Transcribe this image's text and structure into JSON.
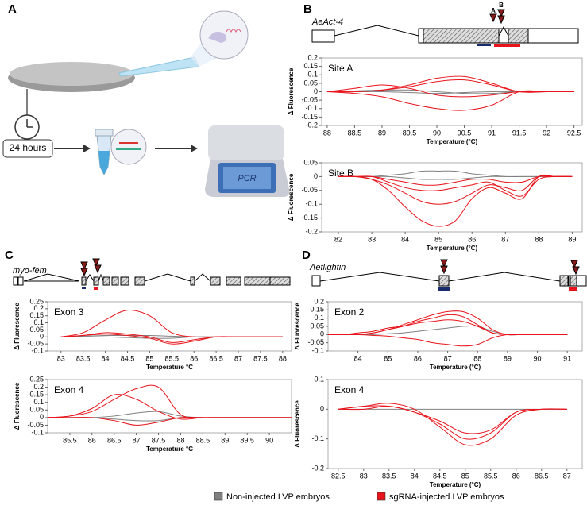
{
  "panels": {
    "a": "A",
    "b": "B",
    "c": "C",
    "d": "D"
  },
  "illustration": {
    "time": "24 hours",
    "machine": "PCR"
  },
  "genes": {
    "b": {
      "name": "AeAct-4",
      "site_a": "A",
      "site_b": "B"
    },
    "c": {
      "name": "myo-fem"
    },
    "d": {
      "name": "Aeflightin"
    }
  },
  "legend": {
    "items": [
      {
        "label": "Non-injected LVP embryos",
        "color": "#808080"
      },
      {
        "label": "sgRNA-injected LVP embryos",
        "color": "#e8141b"
      }
    ]
  },
  "chart_data": [
    {
      "type": "line",
      "label": "Site A",
      "ylabel": "Δ Fluorescence",
      "xlabel": "Temperature (°C)",
      "xlim": [
        87.9,
        92.65
      ],
      "xticks": [
        88,
        88.5,
        89,
        89.5,
        90,
        90.5,
        91,
        91.5,
        92,
        92.5
      ],
      "ylim": [
        -0.2,
        0.2
      ],
      "yticks": [
        -0.2,
        -0.15,
        -0.1,
        -0.05,
        0,
        0.05,
        0.1,
        0.15,
        0.2
      ],
      "x": [
        88,
        88.5,
        89,
        89.5,
        90,
        90.5,
        91,
        91.5,
        92,
        92.5
      ],
      "series": [
        {
          "color": "#808080",
          "values": [
            0,
            0.005,
            0.01,
            0.01,
            0,
            -0.01,
            -0.01,
            0,
            0,
            0
          ]
        },
        {
          "color": "#808080",
          "values": [
            0,
            0,
            0,
            -0.005,
            -0.01,
            -0.005,
            0,
            0,
            0,
            0
          ]
        },
        {
          "color": "#e8141b",
          "values": [
            0,
            0.02,
            0.04,
            0.02,
            -0.02,
            -0.03,
            -0.02,
            0,
            0,
            0
          ]
        },
        {
          "color": "#e8141b",
          "values": [
            0,
            0,
            0.01,
            0.04,
            0.08,
            0.09,
            0.05,
            0,
            0,
            0
          ]
        },
        {
          "color": "#e8141b",
          "values": [
            0,
            0,
            0.01,
            0.03,
            0.06,
            0.07,
            0.04,
            0,
            0,
            0
          ]
        },
        {
          "color": "#e8141b",
          "values": [
            0,
            -0.01,
            -0.03,
            -0.07,
            -0.1,
            -0.11,
            -0.08,
            0,
            0,
            0
          ]
        }
      ]
    },
    {
      "type": "line",
      "label": "Site B",
      "ylabel": "Δ Fluorescence",
      "xlabel": "Temperature (°C)",
      "xlim": [
        81.5,
        89.3
      ],
      "xticks": [
        82,
        83,
        84,
        85,
        86,
        87,
        88,
        89
      ],
      "ylim": [
        -0.2,
        0.05
      ],
      "yticks": [
        -0.2,
        -0.15,
        -0.1,
        -0.05,
        0,
        0.05
      ],
      "x": [
        82,
        82.5,
        83,
        83.5,
        84,
        84.5,
        85,
        85.5,
        86,
        86.5,
        87,
        87.5,
        88,
        88.5,
        89
      ],
      "series": [
        {
          "color": "#808080",
          "values": [
            0,
            0,
            0,
            0.005,
            0.01,
            0.02,
            0.02,
            0.02,
            0.01,
            0.005,
            0,
            0,
            0,
            0,
            0
          ]
        },
        {
          "color": "#808080",
          "values": [
            0,
            0,
            0,
            0,
            -0.005,
            -0.01,
            -0.01,
            -0.01,
            -0.005,
            0,
            0,
            0,
            0,
            0,
            0
          ]
        },
        {
          "color": "#e8141b",
          "values": [
            0,
            0,
            -0.01,
            -0.05,
            -0.11,
            -0.16,
            -0.18,
            -0.16,
            -0.08,
            -0.04,
            -0.06,
            -0.08,
            0,
            0,
            0
          ]
        },
        {
          "color": "#e8141b",
          "values": [
            0,
            0,
            -0.01,
            -0.03,
            -0.06,
            -0.09,
            -0.1,
            -0.09,
            -0.06,
            -0.03,
            -0.04,
            -0.05,
            0,
            0,
            0
          ]
        },
        {
          "color": "#e8141b",
          "values": [
            0,
            0,
            0,
            -0.02,
            -0.04,
            -0.05,
            -0.05,
            -0.04,
            -0.03,
            -0.02,
            -0.05,
            -0.07,
            -0.01,
            0,
            0
          ]
        },
        {
          "color": "#e8141b",
          "values": [
            0,
            0,
            0,
            -0.01,
            -0.02,
            -0.03,
            -0.03,
            -0.02,
            -0.01,
            -0.01,
            -0.02,
            -0.02,
            0,
            0,
            0
          ]
        }
      ]
    },
    {
      "type": "line",
      "label": "Exon 3",
      "ylabel": "Δ Fluorescence",
      "xlabel": "Temperature °C",
      "xlim": [
        82.7,
        88.2
      ],
      "xticks": [
        83,
        83.5,
        84,
        84.5,
        85,
        85.5,
        86,
        86.5,
        87,
        87.5,
        88
      ],
      "ylim": [
        -0.1,
        0.25
      ],
      "yticks": [
        -0.1,
        -0.05,
        0,
        0.05,
        0.1,
        0.15,
        0.2,
        0.25
      ],
      "x": [
        83,
        83.5,
        84,
        84.5,
        85,
        85.5,
        86,
        86.5,
        87,
        87.5,
        88
      ],
      "series": [
        {
          "color": "#808080",
          "values": [
            0,
            0.005,
            0.01,
            0.01,
            0.01,
            0.005,
            0,
            0,
            0,
            0,
            0
          ]
        },
        {
          "color": "#808080",
          "values": [
            0,
            0,
            0,
            -0.005,
            -0.01,
            -0.01,
            0,
            0,
            0,
            0,
            0
          ]
        },
        {
          "color": "#e8141b",
          "values": [
            0,
            0.03,
            0.12,
            0.19,
            0.15,
            0.03,
            0,
            0,
            0,
            0,
            0
          ]
        },
        {
          "color": "#e8141b",
          "values": [
            0,
            0.01,
            0.03,
            0.02,
            0,
            -0.04,
            -0.02,
            0,
            0,
            0,
            0
          ]
        },
        {
          "color": "#e8141b",
          "values": [
            0,
            0.01,
            0.02,
            0.01,
            -0.01,
            -0.05,
            -0.03,
            0,
            0,
            0,
            0
          ]
        }
      ]
    },
    {
      "type": "line",
      "label": "Exon 4",
      "ylabel": "Δ Fluorescence",
      "xlabel": "Temperature °C",
      "xlim": [
        85,
        90.5
      ],
      "xticks": [
        85.5,
        86,
        86.5,
        87,
        87.5,
        88,
        88.5,
        89,
        89.5,
        90
      ],
      "ylim": [
        -0.1,
        0.25
      ],
      "yticks": [
        -0.1,
        -0.05,
        0,
        0.05,
        0.1,
        0.15,
        0.2,
        0.25
      ],
      "x": [
        85,
        85.5,
        86,
        86.5,
        87,
        87.5,
        88,
        88.5,
        89,
        89.5,
        90,
        90.5
      ],
      "series": [
        {
          "color": "#808080",
          "values": [
            0,
            0,
            0,
            0.01,
            0.03,
            0.04,
            0.01,
            0,
            0,
            0,
            0,
            0
          ]
        },
        {
          "color": "#808080",
          "values": [
            0,
            0,
            0,
            -0.01,
            -0.02,
            -0.02,
            0,
            0,
            0,
            0,
            0,
            0
          ]
        },
        {
          "color": "#e8141b",
          "values": [
            0,
            0.01,
            0.06,
            0.15,
            0.12,
            0.04,
            -0.01,
            0,
            0,
            0,
            0,
            0
          ]
        },
        {
          "color": "#e8141b",
          "values": [
            0,
            0.01,
            0.04,
            0.12,
            0.19,
            0.2,
            0.02,
            0,
            0,
            0,
            0,
            0
          ]
        },
        {
          "color": "#e8141b",
          "values": [
            0,
            0,
            0,
            -0.02,
            -0.05,
            -0.03,
            0,
            0,
            0,
            0,
            0,
            0
          ]
        }
      ]
    },
    {
      "type": "line",
      "label": "Exon 2",
      "ylabel": "Δ Fluorescence",
      "xlabel": "Temperature (°C)",
      "xlim": [
        83,
        91.5
      ],
      "xticks": [
        84,
        85,
        86,
        87,
        88,
        89,
        90,
        91
      ],
      "ylim": [
        -0.1,
        0.2
      ],
      "yticks": [
        -0.1,
        -0.05,
        0,
        0.05,
        0.1,
        0.15,
        0.2
      ],
      "x": [
        83,
        83.5,
        84,
        84.5,
        85,
        85.5,
        86,
        86.5,
        87,
        87.5,
        88,
        88.5,
        89,
        89.5,
        90,
        90.5,
        91
      ],
      "series": [
        {
          "color": "#808080",
          "values": [
            0,
            0,
            0,
            0,
            0.005,
            0.01,
            0.02,
            0.03,
            0.04,
            0.05,
            0.05,
            0.02,
            0,
            0,
            0,
            0,
            0
          ]
        },
        {
          "color": "#e8141b",
          "values": [
            0,
            0,
            0,
            0.01,
            0.03,
            0.06,
            0.09,
            0.12,
            0.14,
            0.14,
            0.1,
            0.03,
            0,
            0,
            0,
            0,
            0
          ]
        },
        {
          "color": "#e8141b",
          "values": [
            0,
            0,
            0,
            0.01,
            0.03,
            0.05,
            0.08,
            0.1,
            0.12,
            0.11,
            0.06,
            0.01,
            0,
            0,
            0,
            0,
            0
          ]
        },
        {
          "color": "#e8141b",
          "values": [
            0,
            0,
            0.01,
            0.02,
            0.04,
            0.05,
            0.07,
            0.08,
            0.09,
            0.08,
            0.05,
            0.01,
            0,
            0,
            0,
            0,
            0
          ]
        },
        {
          "color": "#e8141b",
          "values": [
            0,
            0,
            0,
            -0.005,
            -0.01,
            -0.02,
            -0.03,
            -0.05,
            -0.06,
            -0.07,
            -0.06,
            -0.02,
            0,
            0,
            0,
            0,
            0
          ]
        }
      ]
    },
    {
      "type": "line",
      "label": "Exon 4",
      "ylabel": "Δ Fluorescence",
      "xlabel": "Temperature (°C)",
      "xlim": [
        82.3,
        87.3
      ],
      "xticks": [
        82.5,
        83,
        83.5,
        84,
        84.5,
        85,
        85.5,
        86,
        86.5,
        87
      ],
      "ylim": [
        -0.2,
        0.1
      ],
      "yticks": [
        -0.2,
        -0.1,
        0,
        0.1
      ],
      "x": [
        82.5,
        83,
        83.5,
        84,
        84.5,
        85,
        85.5,
        86,
        86.5,
        87
      ],
      "series": [
        {
          "color": "#808080",
          "values": [
            0,
            0,
            0,
            0,
            0,
            0,
            0,
            0,
            0,
            0
          ]
        },
        {
          "color": "#e8141b",
          "values": [
            0,
            0.01,
            0.02,
            0,
            -0.06,
            -0.12,
            -0.1,
            -0.02,
            0,
            0
          ]
        },
        {
          "color": "#e8141b",
          "values": [
            0,
            0.01,
            0.01,
            -0.01,
            -0.05,
            -0.1,
            -0.08,
            -0.01,
            0,
            0
          ]
        },
        {
          "color": "#e8141b",
          "values": [
            0,
            0,
            0.01,
            -0.01,
            -0.04,
            -0.08,
            -0.07,
            -0.01,
            0,
            0
          ]
        }
      ]
    }
  ]
}
